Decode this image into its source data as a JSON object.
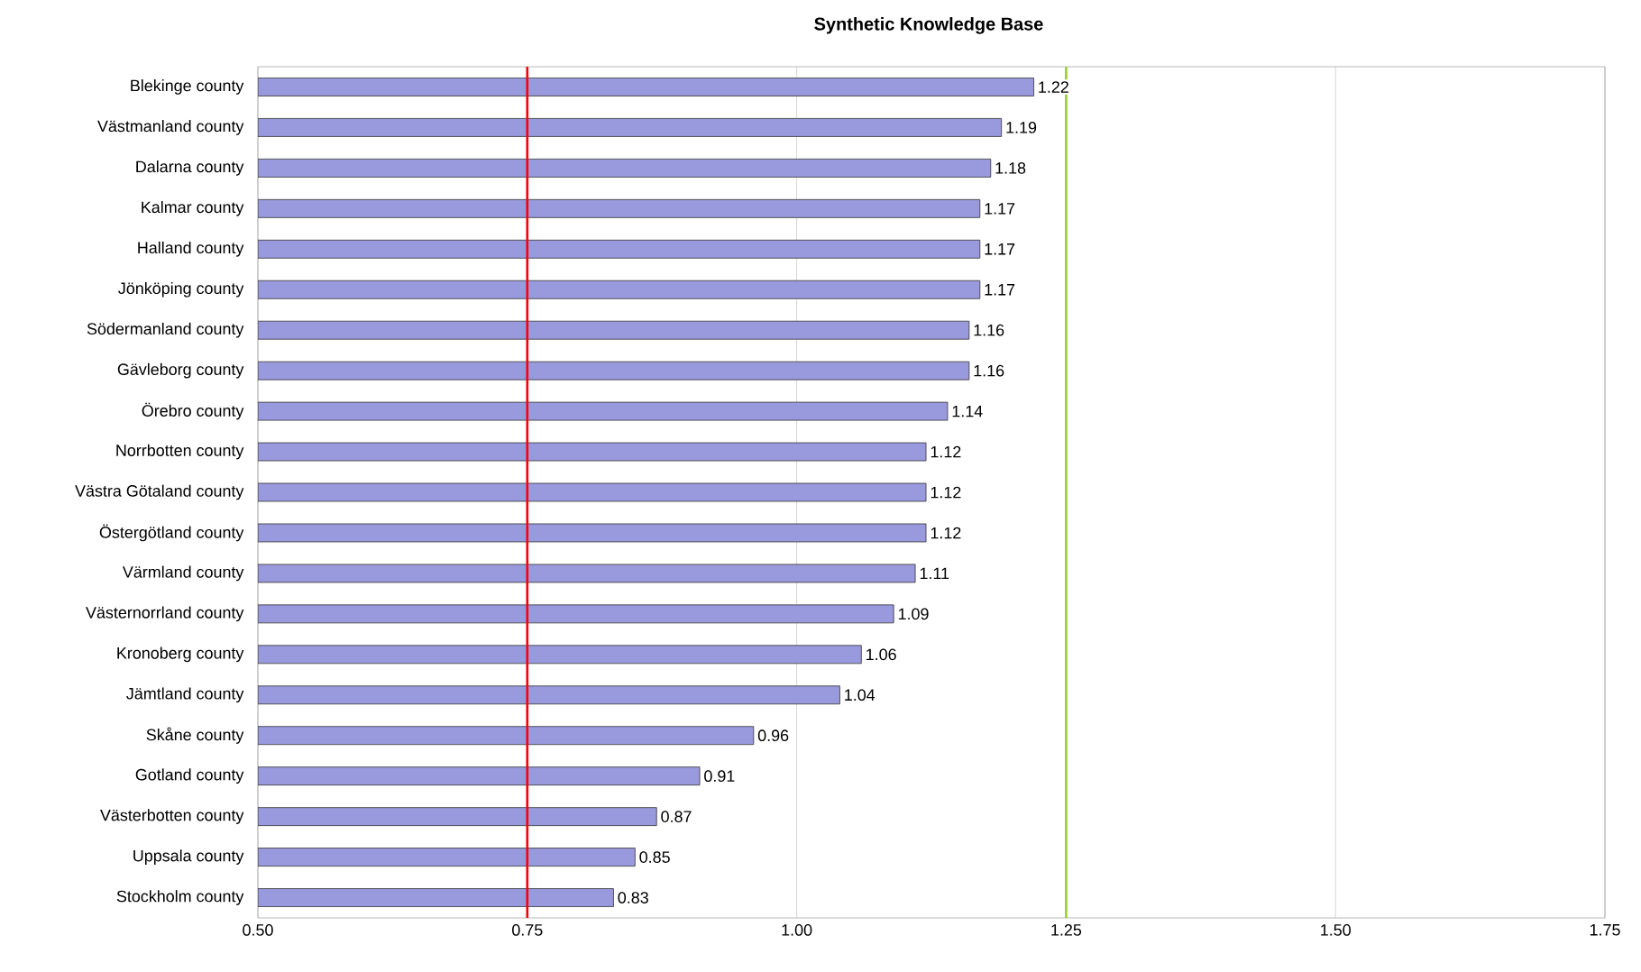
{
  "chart_data": {
    "type": "bar",
    "orientation": "horizontal",
    "title": "Synthetic Knowledge Base",
    "categories": [
      "Blekinge county",
      "Västmanland county",
      "Dalarna county",
      "Kalmar county",
      "Halland county",
      "Jönköping county",
      "Södermanland county",
      "Gävleborg county",
      "Örebro county",
      "Norrbotten county",
      "Västra Götaland county",
      "Östergötland county",
      "Värmland county",
      "Västernorrland county",
      "Kronoberg county",
      "Jämtland county",
      "Skåne county",
      "Gotland county",
      "Västerbotten county",
      "Uppsala county",
      "Stockholm county"
    ],
    "values": [
      1.22,
      1.19,
      1.18,
      1.17,
      1.17,
      1.17,
      1.16,
      1.16,
      1.14,
      1.12,
      1.12,
      1.12,
      1.11,
      1.09,
      1.06,
      1.04,
      0.96,
      0.91,
      0.87,
      0.85,
      0.83
    ],
    "color": "#9999dd",
    "data_labels": true,
    "xlim": [
      0.5,
      1.75
    ],
    "xticks": [
      {
        "value": 0.5,
        "label": "0.50"
      },
      {
        "value": 0.75,
        "label": "0.75"
      },
      {
        "value": 1.0,
        "label": "1.00"
      },
      {
        "value": 1.25,
        "label": "1.25"
      },
      {
        "value": 1.5,
        "label": "1.50"
      },
      {
        "value": 1.75,
        "label": "1.75"
      }
    ],
    "grid": "x",
    "ref_lines": [
      {
        "axis": "x",
        "value": 0.75,
        "color": "#ff0000"
      },
      {
        "axis": "x",
        "value": 1.25,
        "color": "#99cc33"
      }
    ]
  }
}
